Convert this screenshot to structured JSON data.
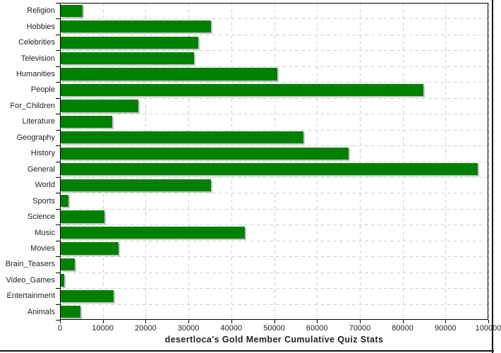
{
  "chart_data": {
    "type": "bar",
    "orientation": "horizontal",
    "title": "desertloca's Gold Member Cumulative Quiz Stats",
    "categories": [
      "Religion",
      "Hobbies",
      "Celebrities",
      "Television",
      "Humanities",
      "People",
      "For_Children",
      "Literature",
      "Geography",
      "History",
      "General",
      "World",
      "Sports",
      "Science",
      "Music",
      "Movies",
      "Brain_Teasers",
      "Video_Games",
      "Entertainment",
      "Animals"
    ],
    "values": [
      5300,
      35200,
      32300,
      31300,
      50700,
      84800,
      18300,
      12200,
      56800,
      67400,
      97500,
      35300,
      2000,
      10400,
      43200,
      13700,
      3500,
      1000,
      12500,
      4800
    ],
    "xlabel": "",
    "ylabel": "",
    "xlim": [
      0,
      100000
    ],
    "x_ticks": [
      0,
      10000,
      20000,
      30000,
      40000,
      50000,
      60000,
      70000,
      80000,
      90000,
      100000
    ],
    "grid": true,
    "legend": false,
    "colors": {
      "bar": "#008000",
      "bar_shadow": "#c4c4c4",
      "grid": "#ccd2d6",
      "axis": "#000000",
      "text": "#222222",
      "background": "#ffffff",
      "image_edge": "#111111"
    }
  }
}
